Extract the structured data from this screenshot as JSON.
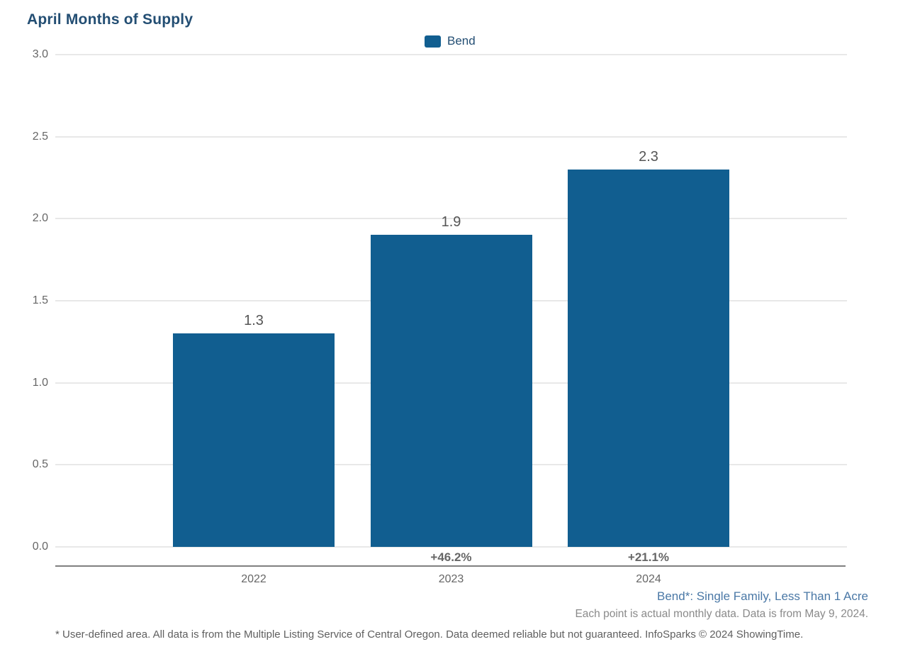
{
  "title": "April Months of Supply",
  "legend": {
    "label": "Bend",
    "swatch_color": "#115E90"
  },
  "chart_data": {
    "type": "bar",
    "title": "April Months of Supply",
    "series_name": "Bend",
    "categories": [
      "2022",
      "2023",
      "2024"
    ],
    "values": [
      1.3,
      1.9,
      2.3
    ],
    "value_labels": [
      "1.3",
      "1.9",
      "2.3"
    ],
    "pct_change_labels": [
      "",
      "+46.2%",
      "+21.1%"
    ],
    "xlabel": "",
    "ylabel": "",
    "ylim": [
      0,
      3.0
    ],
    "yticks": [
      0.0,
      0.5,
      1.0,
      1.5,
      2.0,
      2.5,
      3.0
    ],
    "ytick_labels": [
      "0.0",
      "0.5",
      "1.0",
      "1.5",
      "2.0",
      "2.5",
      "3.0"
    ],
    "grid": true,
    "legend_position": "top-center",
    "bar_color": "#115E90"
  },
  "annotations": {
    "series_note": "Bend*: Single Family, Less Than 1 Acre",
    "data_note": "Each point is actual monthly data. Data is from May 9, 2024.",
    "footnote": "* User-defined area. All data is from the Multiple Listing Service of Central Oregon. Data deemed reliable but not guaranteed. InfoSparks © 2024 ShowingTime."
  },
  "colors": {
    "title_text": "#234E73",
    "bar_fill": "#115E90",
    "gridline": "#E8E8E8",
    "axis_line": "#808080",
    "tick_text": "#666666",
    "value_label_text": "#555555",
    "series_note_text": "#4A78A6",
    "data_note_text": "#8A8A8A"
  }
}
